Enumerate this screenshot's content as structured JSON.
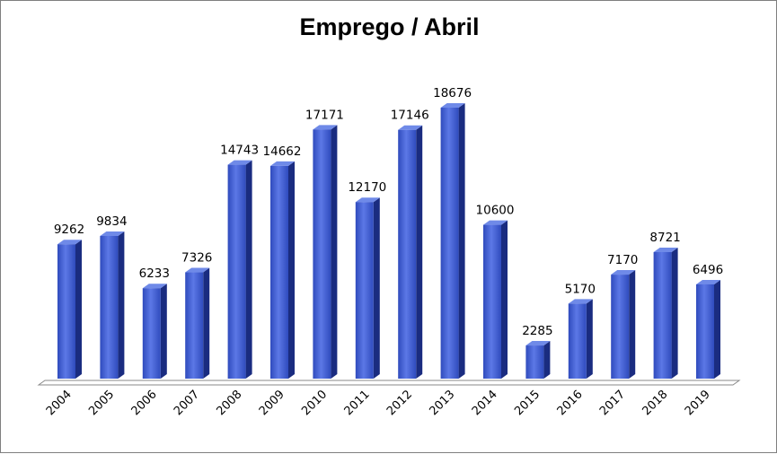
{
  "chart_data": {
    "type": "bar",
    "title": "Emprego / Abril",
    "xlabel": "",
    "ylabel": "",
    "categories": [
      "2004",
      "2005",
      "2006",
      "2007",
      "2008",
      "2009",
      "2010",
      "2011",
      "2012",
      "2013",
      "2014",
      "2015",
      "2016",
      "2017",
      "2018",
      "2019"
    ],
    "values": [
      9262,
      9834,
      6233,
      7326,
      14743,
      14662,
      17171,
      12170,
      17146,
      18676,
      10600,
      2285,
      5170,
      7170,
      8721,
      6496
    ],
    "ylim": [
      0,
      19000
    ],
    "grid": false,
    "legend": "none",
    "bar_style": "3d-column",
    "colors": {
      "bar_front": "#2f4bbd",
      "bar_front_light": "#5c78e6",
      "bar_side": "#1a2c80",
      "bar_top": "#6f8ae8",
      "floor": "#ffffff",
      "floor_stroke": "#8a8a8a"
    }
  }
}
